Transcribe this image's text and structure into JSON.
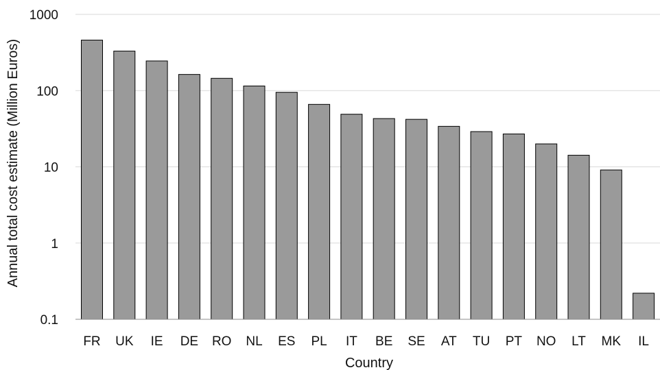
{
  "chart_data": {
    "type": "bar",
    "title": "",
    "xlabel": "Country",
    "ylabel": "Annual total cost estimate (Million Euros)",
    "yscale": "log",
    "ylim": [
      0.1,
      1000
    ],
    "yticks": [
      0.1,
      1,
      10,
      100,
      1000
    ],
    "ytick_labels": [
      "0.1",
      "1",
      "10",
      "100",
      "1000"
    ],
    "grid": "horizontal major gridlines",
    "legend": "none",
    "bar_color": "#9a9a9a",
    "bar_edge_color": "#000000",
    "categories": [
      "FR",
      "UK",
      "IE",
      "DE",
      "RO",
      "NL",
      "ES",
      "PL",
      "IT",
      "BE",
      "SE",
      "AT",
      "TU",
      "PT",
      "NO",
      "LT",
      "MK",
      "IL"
    ],
    "values": [
      460,
      330,
      245,
      163,
      145,
      115,
      95,
      66,
      49,
      43,
      42,
      34,
      29,
      27,
      20,
      14.2,
      9.1,
      0.22
    ]
  }
}
